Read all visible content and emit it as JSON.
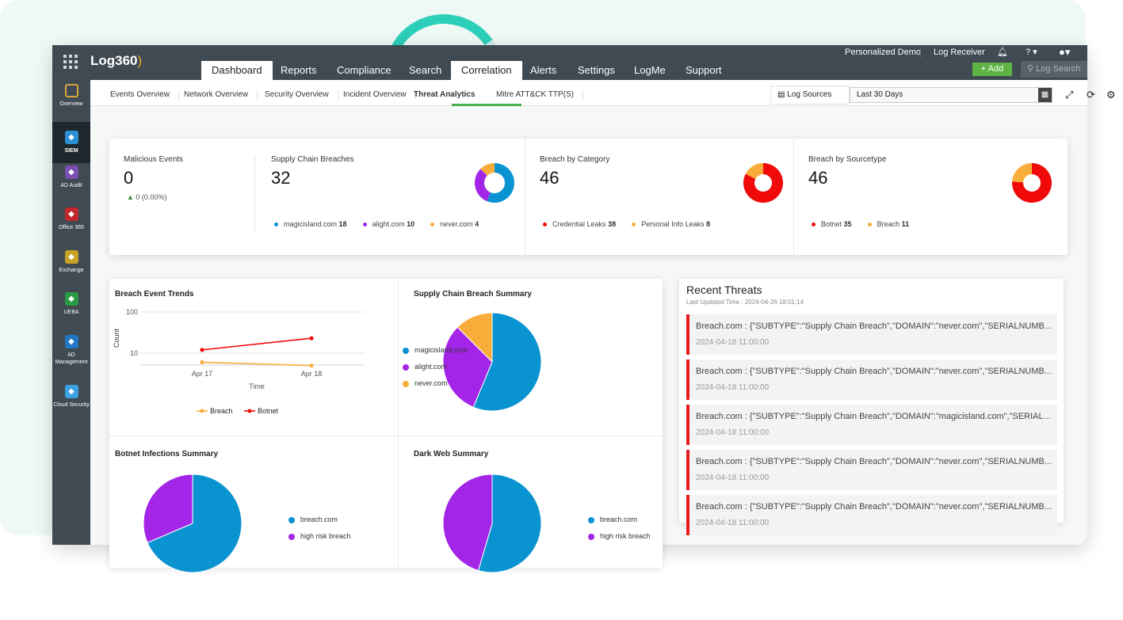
{
  "app": {
    "logo": "Log360"
  },
  "topbar": {
    "links": [
      "Personalized Demo",
      "Log Receiver"
    ],
    "help": "? ▾",
    "add_label": "+ Add",
    "search_placeholder": "Log Search"
  },
  "nav": {
    "tabs": [
      {
        "label": "Dashboard",
        "active": true
      },
      {
        "label": "Reports"
      },
      {
        "label": "Compliance"
      },
      {
        "label": "Search"
      },
      {
        "label": "Correlation",
        "active": true
      },
      {
        "label": "Alerts"
      },
      {
        "label": "Settings"
      },
      {
        "label": "LogMe"
      },
      {
        "label": "Support"
      }
    ]
  },
  "sidebar": {
    "items": [
      {
        "label": "Overview",
        "icon": "overview-grid-icon",
        "color": "#3f4a52"
      },
      {
        "label": "SIEM",
        "icon": "siem-shield-icon",
        "color": "#2b8fd6",
        "active": true
      },
      {
        "label": "AD Audit",
        "icon": "ad-audit-icon",
        "color": "#7a4fb0"
      },
      {
        "label": "Office 365",
        "icon": "office365-icon",
        "color": "#c2272d"
      },
      {
        "label": "Exchange",
        "icon": "exchange-mail-icon",
        "color": "#c9a227"
      },
      {
        "label": "UEBA",
        "icon": "ueba-eye-icon",
        "color": "#2d9a47"
      },
      {
        "label": "AD Management",
        "icon": "ad-management-icon",
        "color": "#2276c2"
      },
      {
        "label": "Cloud Security",
        "icon": "cloud-security-icon",
        "color": "#3aa0e0"
      }
    ]
  },
  "subtabs": {
    "items": [
      {
        "label": "Events Overview"
      },
      {
        "label": "Network Overview"
      },
      {
        "label": "Security Overview"
      },
      {
        "label": "Incident Overview"
      },
      {
        "label": "Threat Analytics",
        "active": true
      },
      {
        "label": "Mitre ATT&CK TTP(S)"
      }
    ],
    "log_sources": "Log Sources",
    "date_range": "Last 30 Days"
  },
  "colors": {
    "blue": "#0a93d1",
    "purple": "#a326e8",
    "orange": "#f8ad3a",
    "red": "#f00a0a",
    "accent_green": "#4caf50"
  },
  "summary": {
    "malicious": {
      "title": "Malicious Events",
      "value": "0",
      "change": "0 (0.00%)"
    },
    "supply": {
      "title": "Supply Chain Breaches",
      "value": "32",
      "items": [
        {
          "name": "magicisland.com",
          "value": 18,
          "color": "#0a93d1"
        },
        {
          "name": "alight.com",
          "value": 10,
          "color": "#a326e8"
        },
        {
          "name": "never.com",
          "value": 4,
          "color": "#f8ad3a"
        }
      ]
    },
    "category": {
      "title": "Breach by Category",
      "value": "46",
      "items": [
        {
          "name": "Credential Leaks",
          "value": 38,
          "color": "#f00a0a"
        },
        {
          "name": "Personal Info Leaks",
          "value": 8,
          "color": "#f8ad3a"
        }
      ]
    },
    "sourcetype": {
      "title": "Breach by Sourcetype",
      "value": "46",
      "items": [
        {
          "name": "Botnet",
          "value": 35,
          "color": "#f00a0a"
        },
        {
          "name": "Breach",
          "value": 11,
          "color": "#f8ad3a"
        }
      ]
    }
  },
  "chart_data": [
    {
      "type": "line",
      "title": "Breach Event Trends",
      "xlabel": "Time",
      "ylabel": "Count",
      "yscale": "log",
      "ylim": [
        5,
        100
      ],
      "yticks": [
        10,
        100
      ],
      "categories": [
        "Apr 17",
        "Apr 18"
      ],
      "grid": true,
      "legend": "bottom",
      "series": [
        {
          "name": "Breach",
          "values": [
            6,
            5
          ],
          "color": "#f8ad3a"
        },
        {
          "name": "Botnet",
          "values": [
            12,
            23
          ],
          "color": "#f00a0a"
        }
      ]
    },
    {
      "type": "pie",
      "title": "Supply Chain Breach Summary",
      "legend": "right",
      "labels": [
        "magicisland.com",
        "alight.com",
        "never.com"
      ],
      "values": [
        18,
        10,
        4
      ],
      "colors": [
        "#0a93d1",
        "#a326e8",
        "#f8ad3a"
      ]
    },
    {
      "type": "pie",
      "title": "Botnet Infections Summary",
      "legend": "right",
      "labels": [
        "breach.com",
        "high risk breach"
      ],
      "values": [
        24,
        11
      ],
      "colors": [
        "#0a93d1",
        "#a326e8"
      ]
    },
    {
      "type": "pie",
      "title": "Dark Web Summary",
      "legend": "right",
      "labels": [
        "breach.com",
        "high risk breach"
      ],
      "values": [
        6,
        5
      ],
      "colors": [
        "#0a93d1",
        "#a326e8"
      ]
    }
  ],
  "recent_threats": {
    "title": "Recent Threats",
    "updated": "Last Updated Time : 2024-04-26 18:01:14",
    "items": [
      {
        "message": "Breach.com : {\"SUBTYPE\":\"Supply Chain Breach\",\"DOMAIN\":\"never.com\",\"SERIALNUMB...",
        "time": "2024-04-18 11:00:00"
      },
      {
        "message": "Breach.com : {\"SUBTYPE\":\"Supply Chain Breach\",\"DOMAIN\":\"never.com\",\"SERIALNUMB...",
        "time": "2024-04-18 11:00:00"
      },
      {
        "message": "Breach.com : {\"SUBTYPE\":\"Supply Chain Breach\",\"DOMAIN\":\"magicisland.com\",\"SERIAL...",
        "time": "2024-04-18 11:00:00"
      },
      {
        "message": "Breach.com : {\"SUBTYPE\":\"Supply Chain Breach\",\"DOMAIN\":\"never.com\",\"SERIALNUMB...",
        "time": "2024-04-18 11:00:00"
      },
      {
        "message": "Breach.com : {\"SUBTYPE\":\"Supply Chain Breach\",\"DOMAIN\":\"never.com\",\"SERIALNUMB...",
        "time": "2024-04-18 11:00:00"
      }
    ]
  }
}
